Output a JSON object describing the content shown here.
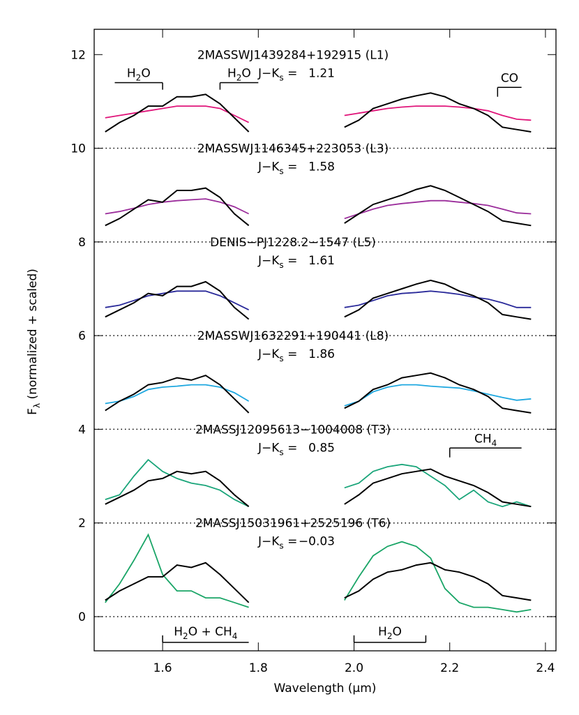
{
  "chart_data": {
    "type": "line",
    "x_label": "Wavelength (μm)",
    "y_label": {
      "main": "F",
      "sub": "λ",
      "tail": " (normalized + scaled)"
    },
    "xlim": [
      1.457,
      2.422
    ],
    "ylim": [
      -0.73,
      12.54
    ],
    "xticks": [
      1.6,
      1.8,
      {
        "value": 2,
        "label": "2.0"
      },
      2.2,
      2.4
    ],
    "yticks": [
      0,
      2,
      4,
      6,
      8,
      10,
      12
    ],
    "separators": [
      10,
      8,
      6,
      4,
      2,
      0
    ],
    "jk_label": {
      "main": "J−K",
      "sub": "s",
      "tail": " ="
    },
    "x": [
      1.48,
      1.51,
      1.54,
      1.57,
      1.6,
      1.63,
      1.66,
      1.69,
      1.72,
      1.75,
      1.78,
      null,
      1.98,
      2.01,
      2.04,
      2.07,
      2.1,
      2.13,
      2.16,
      2.19,
      2.22,
      2.25,
      2.28,
      2.31,
      2.34,
      2.37
    ],
    "spectra": [
      {
        "title": "2MASSWJ1439284+192915 (L1)",
        "jks": "1.21",
        "color": "#e0157a",
        "anchor": 12,
        "observed": [
          10.35,
          10.55,
          10.7,
          10.9,
          10.9,
          11.1,
          11.1,
          11.15,
          10.95,
          10.65,
          10.35,
          null,
          10.45,
          10.6,
          10.85,
          10.95,
          11.05,
          11.12,
          11.18,
          11.1,
          10.95,
          10.85,
          10.7,
          10.45,
          10.4,
          10.35
        ],
        "model": [
          10.65,
          10.7,
          10.75,
          10.8,
          10.85,
          10.9,
          10.9,
          10.9,
          10.85,
          10.7,
          10.55,
          null,
          10.7,
          10.75,
          10.8,
          10.85,
          10.88,
          10.9,
          10.9,
          10.9,
          10.88,
          10.85,
          10.8,
          10.7,
          10.62,
          10.6
        ]
      },
      {
        "title": "2MASSWJ1146345+223053 (L3)",
        "jks": "1.58",
        "color": "#9b2d9b",
        "anchor": 10,
        "observed": [
          8.35,
          8.5,
          8.7,
          8.9,
          8.85,
          9.1,
          9.1,
          9.15,
          8.95,
          8.6,
          8.35,
          null,
          8.4,
          8.6,
          8.8,
          8.9,
          9.0,
          9.12,
          9.2,
          9.1,
          8.95,
          8.8,
          8.65,
          8.45,
          8.4,
          8.35
        ],
        "model": [
          8.6,
          8.65,
          8.72,
          8.8,
          8.85,
          8.88,
          8.9,
          8.92,
          8.85,
          8.75,
          8.6,
          null,
          8.5,
          8.6,
          8.7,
          8.78,
          8.82,
          8.85,
          8.88,
          8.88,
          8.85,
          8.82,
          8.78,
          8.7,
          8.62,
          8.6
        ]
      },
      {
        "title": "DENIS−PJ1228.2−1547 (L5)",
        "jks": "1.61",
        "color": "#2a2a9a",
        "anchor": 8,
        "observed": [
          6.4,
          6.55,
          6.7,
          6.9,
          6.85,
          7.05,
          7.05,
          7.15,
          6.95,
          6.6,
          6.35,
          null,
          6.4,
          6.55,
          6.8,
          6.9,
          7.0,
          7.1,
          7.18,
          7.1,
          6.95,
          6.85,
          6.7,
          6.45,
          6.4,
          6.35
        ],
        "model": [
          6.6,
          6.65,
          6.75,
          6.85,
          6.9,
          6.95,
          6.95,
          6.95,
          6.85,
          6.7,
          6.55,
          null,
          6.6,
          6.65,
          6.75,
          6.85,
          6.9,
          6.92,
          6.95,
          6.92,
          6.88,
          6.82,
          6.78,
          6.7,
          6.6,
          6.6
        ]
      },
      {
        "title": "2MASSWJ1632291+190441 (L8)",
        "jks": "1.86",
        "color": "#1fa8e0",
        "anchor": 6,
        "observed": [
          4.4,
          4.6,
          4.75,
          4.95,
          5.0,
          5.1,
          5.05,
          5.15,
          4.95,
          4.65,
          4.35,
          null,
          4.45,
          4.6,
          4.85,
          4.95,
          5.1,
          5.15,
          5.2,
          5.1,
          4.95,
          4.85,
          4.7,
          4.45,
          4.4,
          4.35
        ],
        "model": [
          4.55,
          4.6,
          4.7,
          4.85,
          4.9,
          4.92,
          4.95,
          4.95,
          4.9,
          4.78,
          4.6,
          null,
          4.5,
          4.6,
          4.8,
          4.9,
          4.95,
          4.95,
          4.92,
          4.9,
          4.88,
          4.82,
          4.75,
          4.68,
          4.62,
          4.65
        ]
      },
      {
        "title": "2MASSJ12095613−1004008 (T3)",
        "jks": "0.85",
        "color": "#1aa57a",
        "anchor": 4,
        "observed": [
          2.4,
          2.55,
          2.7,
          2.9,
          2.95,
          3.1,
          3.05,
          3.1,
          2.9,
          2.6,
          2.35,
          null,
          2.4,
          2.6,
          2.85,
          2.95,
          3.05,
          3.1,
          3.15,
          3.0,
          2.9,
          2.8,
          2.65,
          2.45,
          2.4,
          2.35
        ],
        "model": [
          2.5,
          2.6,
          3.0,
          3.35,
          3.1,
          2.95,
          2.85,
          2.8,
          2.7,
          2.5,
          2.35,
          null,
          2.75,
          2.85,
          3.1,
          3.2,
          3.25,
          3.2,
          3.0,
          2.8,
          2.5,
          2.7,
          2.45,
          2.35,
          2.45,
          2.35
        ]
      },
      {
        "title": "2MASSJ15031961+2525196 (T6)",
        "jks": "−0.03",
        "color": "#1aa567",
        "anchor": 2,
        "observed": [
          0.35,
          0.55,
          0.7,
          0.85,
          0.85,
          1.1,
          1.05,
          1.15,
          0.9,
          0.6,
          0.3,
          null,
          0.4,
          0.55,
          0.8,
          0.95,
          1.0,
          1.1,
          1.15,
          1.0,
          0.95,
          0.85,
          0.7,
          0.45,
          0.4,
          0.35
        ],
        "model": [
          0.3,
          0.7,
          1.2,
          1.75,
          0.9,
          0.55,
          0.55,
          0.4,
          0.4,
          0.3,
          0.2,
          null,
          0.35,
          0.85,
          1.3,
          1.5,
          1.6,
          1.5,
          1.25,
          0.6,
          0.3,
          0.2,
          0.2,
          0.15,
          0.1,
          0.15
        ]
      }
    ],
    "features": [
      {
        "label": [
          {
            "t": "H"
          },
          {
            "t": "2",
            "sub": true
          },
          {
            "t": "O"
          }
        ],
        "x1": 1.5,
        "x2": 1.6,
        "y": 11.4,
        "ticks": [
          1.6
        ],
        "tick_to": 11.25
      },
      {
        "label": [
          {
            "t": "H"
          },
          {
            "t": "2",
            "sub": true
          },
          {
            "t": "O"
          }
        ],
        "x1": 1.72,
        "x2": 1.8,
        "y": 11.4,
        "ticks": [
          1.72
        ],
        "tick_to": 11.25
      },
      {
        "label": [
          {
            "t": "CO"
          }
        ],
        "x1": 2.3,
        "x2": 2.35,
        "y": 11.3,
        "ticks": [
          2.3
        ],
        "tick_to": 11.1
      },
      {
        "label": [
          {
            "t": "CH"
          },
          {
            "t": "4",
            "sub": true
          }
        ],
        "x1": 2.2,
        "x2": 2.35,
        "y": 3.6,
        "ticks": [
          2.2
        ],
        "tick_to": 3.4
      },
      {
        "label": [
          {
            "t": "H"
          },
          {
            "t": "2",
            "sub": true
          },
          {
            "t": "O  +  CH"
          },
          {
            "t": "4",
            "sub": true
          }
        ],
        "x1": 1.6,
        "x2": 1.78,
        "y": -0.55,
        "ticks": [
          1.6
        ],
        "tick_to": -0.4
      },
      {
        "label": [
          {
            "t": "H"
          },
          {
            "t": "2",
            "sub": true
          },
          {
            "t": "O"
          }
        ],
        "x1": 2.0,
        "x2": 2.15,
        "y": -0.55,
        "ticks": [
          2.0,
          2.15
        ],
        "tick_to": -0.4
      }
    ]
  }
}
